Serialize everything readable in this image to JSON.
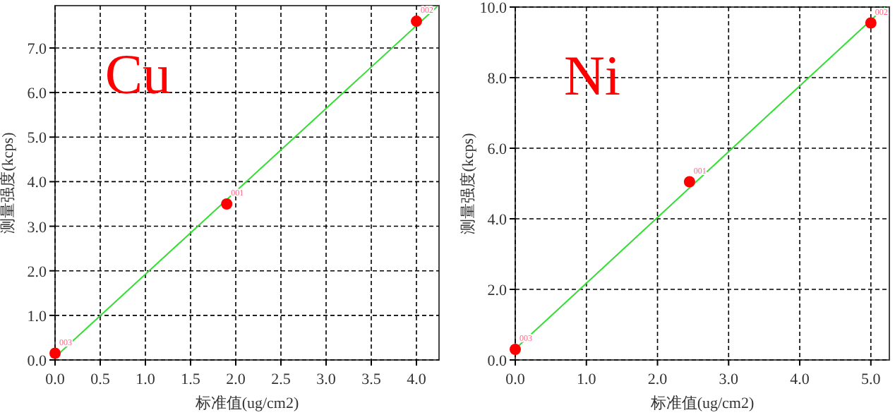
{
  "chart_data": [
    {
      "type": "scatter",
      "xlabel": "标准值(ug/cm2)",
      "ylabel": "测量强度(kcps)",
      "xlim": [
        0,
        4.25
      ],
      "ylim": [
        0,
        7.95
      ],
      "xticks": [
        {
          "value": 0,
          "label": "0.0"
        },
        {
          "value": 0.5,
          "label": "0.5"
        },
        {
          "value": 1,
          "label": "1.0"
        },
        {
          "value": 1.5,
          "label": "1.5"
        },
        {
          "value": 2,
          "label": "2.0"
        },
        {
          "value": 2.5,
          "label": "2.5"
        },
        {
          "value": 3,
          "label": "3.0"
        },
        {
          "value": 3.5,
          "label": "3.5"
        },
        {
          "value": 4,
          "label": "4.0"
        }
      ],
      "yticks": [
        {
          "value": 0,
          "label": "0.0"
        },
        {
          "value": 1,
          "label": "1.0"
        },
        {
          "value": 2,
          "label": "2.0"
        },
        {
          "value": 3,
          "label": "3.0"
        },
        {
          "value": 4,
          "label": "4.0"
        },
        {
          "value": 5,
          "label": "5.0"
        },
        {
          "value": 6,
          "label": "6.0"
        },
        {
          "value": 7,
          "label": "7.0"
        }
      ],
      "grid": true,
      "marker": "circle",
      "series": [
        {
          "type": "line",
          "marker": "none",
          "color": "#33dd33",
          "x": [
            0.02,
            4.23
          ],
          "values": [
            0.1,
            7.93
          ]
        },
        {
          "type": "scatter",
          "color": "#ff0000",
          "x": [
            0,
            1.9,
            4.0
          ],
          "values": [
            0.15,
            3.5,
            7.6
          ]
        }
      ],
      "annotations": [
        "Cu",
        {
          "text": "003",
          "x": 0,
          "y": 0.15
        },
        {
          "text": "001",
          "x": 1.9,
          "y": 3.5
        },
        {
          "text": "002",
          "x": 4.0,
          "y": 7.6
        }
      ]
    },
    {
      "type": "scatter",
      "xlabel": "标准值(ug/cm2)",
      "ylabel": "测量强度(kcps)",
      "xlim": [
        0,
        5.26
      ],
      "ylim": [
        0,
        10
      ],
      "xticks": [
        {
          "value": 0,
          "label": "0.0"
        },
        {
          "value": 1,
          "label": "1.0"
        },
        {
          "value": 2,
          "label": "2.0"
        },
        {
          "value": 3,
          "label": "3.0"
        },
        {
          "value": 4,
          "label": "4.0"
        },
        {
          "value": 5,
          "label": "5.0"
        }
      ],
      "yticks": [
        {
          "value": 0,
          "label": "0.0"
        },
        {
          "value": 2,
          "label": "2.0"
        },
        {
          "value": 4,
          "label": "4.0"
        },
        {
          "value": 6,
          "label": "6.0"
        },
        {
          "value": 8,
          "label": "8.0"
        },
        {
          "value": 10,
          "label": "10.0"
        }
      ],
      "grid": true,
      "marker": "circle",
      "series": [
        {
          "type": "line",
          "marker": "none",
          "color": "#33dd33",
          "x": [
            0.02,
            5.2
          ],
          "values": [
            0.35,
            10
          ]
        },
        {
          "type": "scatter",
          "color": "#ff0000",
          "x": [
            0,
            2.45,
            5.0
          ],
          "values": [
            0.3,
            5.05,
            9.55
          ]
        }
      ],
      "annotations": [
        "Ni",
        {
          "text": "003",
          "x": 0,
          "y": 0.3
        },
        {
          "text": "001",
          "x": 2.45,
          "y": 5.05
        },
        {
          "text": "002",
          "x": 5.0,
          "y": 9.55
        }
      ]
    }
  ]
}
